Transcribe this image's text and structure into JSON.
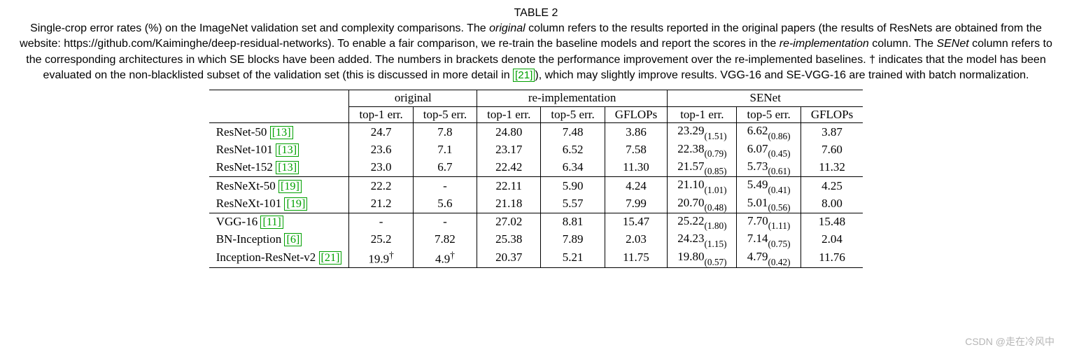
{
  "table_label": "TABLE 2",
  "caption": {
    "p1": "Single-crop error rates (%) on the ImageNet validation set and complexity comparisons. The ",
    "em1": "original",
    "p2": " column refers to the results reported in the original papers (the results of ResNets are obtained from the website: https://github.com/Kaiminghe/deep-residual-networks). To enable a fair comparison, we re-train the baseline models and report the scores in the ",
    "em2": "re-implementation",
    "p3": " column. The ",
    "em3": "SENet",
    "p4": " column refers to the corresponding architectures in which SE blocks have been added. The numbers in brackets denote the performance improvement over the re-implemented baselines. † indicates that the model has been evaluated on the non-blacklisted subset of the validation set (this is discussed in more detail in ",
    "ref": "[21]",
    "p5": "), which may slightly improve results. VGG-16 and SE-VGG-16 are trained with batch normalization."
  },
  "headers": {
    "group_original": "original",
    "group_reimpl": "re-implementation",
    "group_senet": "SENet",
    "top1": "top-1 err.",
    "top5": "top-5 err.",
    "gflops": "GFLOPs"
  },
  "rows": [
    {
      "name": "ResNet-50",
      "ref": "[13]",
      "o1": "24.7",
      "o5": "7.8",
      "r1": "24.80",
      "r5": "7.48",
      "rg": "3.86",
      "s1": "23.29",
      "s1d": "(1.51)",
      "s5": "6.62",
      "s5d": "(0.86)",
      "sg": "3.87",
      "group_start": true
    },
    {
      "name": "ResNet-101",
      "ref": "[13]",
      "o1": "23.6",
      "o5": "7.1",
      "r1": "23.17",
      "r5": "6.52",
      "rg": "7.58",
      "s1": "22.38",
      "s1d": "(0.79)",
      "s5": "6.07",
      "s5d": "(0.45)",
      "sg": "7.60"
    },
    {
      "name": "ResNet-152",
      "ref": "[13]",
      "o1": "23.0",
      "o5": "6.7",
      "r1": "22.42",
      "r5": "6.34",
      "rg": "11.30",
      "s1": "21.57",
      "s1d": "(0.85)",
      "s5": "5.73",
      "s5d": "(0.61)",
      "sg": "11.32"
    },
    {
      "name": "ResNeXt-50",
      "ref": "[19]",
      "o1": "22.2",
      "o5": "-",
      "r1": "22.11",
      "r5": "5.90",
      "rg": "4.24",
      "s1": "21.10",
      "s1d": "(1.01)",
      "s5": "5.49",
      "s5d": "(0.41)",
      "sg": "4.25",
      "group_start": true
    },
    {
      "name": "ResNeXt-101",
      "ref": "[19]",
      "o1": "21.2",
      "o5": "5.6",
      "r1": "21.18",
      "r5": "5.57",
      "rg": "7.99",
      "s1": "20.70",
      "s1d": "(0.48)",
      "s5": "5.01",
      "s5d": "(0.56)",
      "sg": "8.00"
    },
    {
      "name": "VGG-16",
      "ref": "[11]",
      "o1": "-",
      "o5": "-",
      "r1": "27.02",
      "r5": "8.81",
      "rg": "15.47",
      "s1": "25.22",
      "s1d": "(1.80)",
      "s5": "7.70",
      "s5d": "(1.11)",
      "sg": "15.48",
      "group_start": true
    },
    {
      "name": "BN-Inception",
      "ref": "[6]",
      "o1": "25.2",
      "o5": "7.82",
      "r1": "25.38",
      "r5": "7.89",
      "rg": "2.03",
      "s1": "24.23",
      "s1d": "(1.15)",
      "s5": "7.14",
      "s5d": "(0.75)",
      "sg": "2.04"
    },
    {
      "name": "Inception-ResNet-v2",
      "ref": "[21]",
      "o1": "19.9",
      "o1dag": true,
      "o5": "4.9",
      "o5dag": true,
      "r1": "20.37",
      "r5": "5.21",
      "rg": "11.75",
      "s1": "19.80",
      "s1d": "(0.57)",
      "s5": "4.79",
      "s5d": "(0.42)",
      "sg": "11.76",
      "last": true
    }
  ],
  "styling": {
    "ref_color": "#00a000",
    "border_color": "#000000",
    "background": "#ffffff",
    "text_color": "#000000",
    "caption_font": "Arial",
    "body_font": "Times New Roman",
    "font_size_pt": 12
  },
  "watermark": "CSDN @走在冷风中"
}
